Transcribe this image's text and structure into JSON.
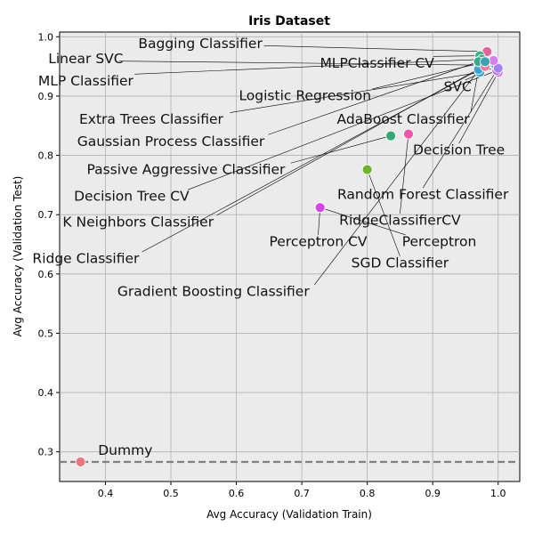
{
  "chart_data": {
    "type": "scatter",
    "title": "Iris Dataset",
    "xlabel": "Avg Accuracy (Validation Train)",
    "ylabel": "Avg Accuracy (Validation Test)",
    "xlim": [
      0.33,
      1.033
    ],
    "ylim": [
      0.25,
      1.008
    ],
    "xticks": [
      "0.4",
      "0.5",
      "0.6",
      "0.7",
      "0.8",
      "0.9",
      "1.0"
    ],
    "yticks": [
      "0.3",
      "0.4",
      "0.5",
      "0.6",
      "0.7",
      "0.8",
      "0.9",
      "1.0"
    ],
    "grid": true,
    "baseline": 0.283,
    "points": [
      {
        "label": "Bagging Classifier",
        "x": 0.983,
        "y": 0.975,
        "color": "#e8629a",
        "text_x": 0.545,
        "text_y": 0.988
      },
      {
        "label": "Linear SVC",
        "x": 0.995,
        "y": 0.952,
        "color": "#b9a0ef",
        "text_x": 0.37,
        "text_y": 0.962
      },
      {
        "label": "MLPClassifier CV",
        "x": 0.972,
        "y": 0.968,
        "color": "#37b08c",
        "text_x": 0.815,
        "text_y": 0.955
      },
      {
        "label": "MLP Classifier",
        "x": 0.975,
        "y": 0.962,
        "color": "#35ad6a",
        "text_x": 0.37,
        "text_y": 0.925
      },
      {
        "label": "SVC",
        "x": 0.997,
        "y": 0.95,
        "color": "#6c8ff5",
        "text_x": 0.938,
        "text_y": 0.915
      },
      {
        "label": "Logistic Regression",
        "x": 0.97,
        "y": 0.955,
        "color": "#31a5a0",
        "text_x": 0.705,
        "text_y": 0.9
      },
      {
        "label": "Extra Trees Classifier",
        "x": 0.972,
        "y": 0.94,
        "color": "#39a7be",
        "text_x": 0.47,
        "text_y": 0.86
      },
      {
        "label": "AdaBoost Classifier",
        "x": 0.97,
        "y": 0.945,
        "color": "#3aa3d0",
        "text_x": 0.855,
        "text_y": 0.86
      },
      {
        "label": "Gaussian Process Classifier",
        "x": 0.97,
        "y": 0.958,
        "color": "#35a896",
        "text_x": 0.5,
        "text_y": 0.823
      },
      {
        "label": "Decision Tree",
        "x": 1.0,
        "y": 0.94,
        "color": "#e44fdc",
        "text_x": 0.94,
        "text_y": 0.808
      },
      {
        "label": "Passive Aggressive Classifier",
        "x": 0.836,
        "y": 0.833,
        "color": "#34a86f",
        "text_x": 0.523,
        "text_y": 0.775
      },
      {
        "label": "Decision Tree CV",
        "x": 0.998,
        "y": 0.943,
        "color": "#c169ee",
        "text_x": 0.44,
        "text_y": 0.73
      },
      {
        "label": "Random Forest Classifier",
        "x": 1.0,
        "y": 0.947,
        "color": "#a382f3",
        "text_x": 0.885,
        "text_y": 0.733
      },
      {
        "label": "K Neighbors Classifier",
        "x": 0.993,
        "y": 0.96,
        "color": "#d97ff0",
        "text_x": 0.45,
        "text_y": 0.687
      },
      {
        "label": "RidgeClassifierCV",
        "x": 0.863,
        "y": 0.836,
        "color": "#f155a7",
        "text_x": 0.85,
        "text_y": 0.69
      },
      {
        "label": "Perceptron CV",
        "x": 0.728,
        "y": 0.712,
        "color": "#e342e6",
        "text_x": 0.725,
        "text_y": 0.654
      },
      {
        "label": "Perceptron",
        "x": 0.728,
        "y": 0.712,
        "color": "#d944ea",
        "text_x": 0.91,
        "text_y": 0.654
      },
      {
        "label": "Ridge Classifier",
        "x": 0.98,
        "y": 0.95,
        "color": "#f27a9a",
        "text_x": 0.37,
        "text_y": 0.625
      },
      {
        "label": "SGD Classifier",
        "x": 0.8,
        "y": 0.776,
        "color": "#6ab22a",
        "text_x": 0.85,
        "text_y": 0.618
      },
      {
        "label": "Gradient Boosting Classifier",
        "x": 0.98,
        "y": 0.958,
        "color": "#39a4b2",
        "text_x": 0.565,
        "text_y": 0.57
      },
      {
        "label": "Dummy",
        "x": 0.362,
        "y": 0.283,
        "color": "#f07583",
        "text_x": 0.416,
        "text_y": 0.302
      }
    ]
  }
}
